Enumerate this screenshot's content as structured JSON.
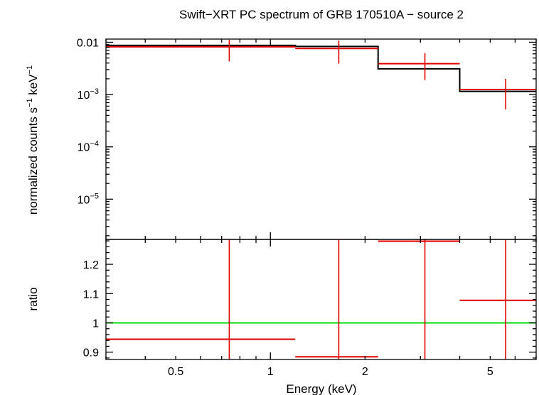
{
  "chart_data": [
    {
      "panel": "spectrum",
      "type": "line",
      "title": "Swift−XRT PC spectrum of GRB 170510A − source 2",
      "ylabel": "normalized counts s",
      "ylabel_sup1": "−1",
      "ylabel_mid": " keV",
      "ylabel_sup2": "−1",
      "xscale": "log",
      "yscale": "log",
      "xlim": [
        0.3,
        7.0
      ],
      "ylim": [
        1.7e-06,
        0.0115
      ],
      "yticks": [
        {
          "value": 0.01,
          "base": "0.01",
          "exp": ""
        },
        {
          "value": 0.001,
          "base": "10",
          "exp": "−3"
        },
        {
          "value": 0.0001,
          "base": "10",
          "exp": "−4"
        },
        {
          "value": 1e-05,
          "base": "10",
          "exp": "−5"
        }
      ],
      "series": [
        {
          "type": "data-points",
          "color": "#e00000",
          "points": [
            {
              "x": 0.74,
              "xlo": 0.3,
              "xhi": 1.2,
              "y": 0.0082,
              "ylo": 0.0043,
              "yhi": 0.0112
            },
            {
              "x": 1.65,
              "xlo": 1.2,
              "xhi": 2.2,
              "y": 0.0076,
              "ylo": 0.0039,
              "yhi": 0.0108
            },
            {
              "x": 3.1,
              "xlo": 2.2,
              "xhi": 4.0,
              "y": 0.0039,
              "ylo": 0.0019,
              "yhi": 0.0062
            },
            {
              "x": 5.6,
              "xlo": 4.0,
              "xhi": 7.0,
              "y": 0.00125,
              "ylo": 0.00052,
              "yhi": 0.002
            }
          ]
        },
        {
          "type": "model-step",
          "color": "#000000",
          "steps": [
            {
              "xlo": 0.3,
              "xhi": 1.2,
              "y": 0.0087
            },
            {
              "xlo": 1.2,
              "xhi": 2.2,
              "y": 0.0083
            },
            {
              "xlo": 2.2,
              "xhi": 4.0,
              "y": 0.0031
            },
            {
              "xlo": 4.0,
              "xhi": 7.0,
              "y": 0.00115
            }
          ]
        }
      ]
    },
    {
      "panel": "ratio",
      "type": "scatter",
      "ylabel": "ratio",
      "xlabel": "Energy (keV)",
      "xscale": "log",
      "xlim": [
        0.3,
        7.0
      ],
      "ylim": [
        0.875,
        1.285
      ],
      "yticks": [
        "0.9",
        "1",
        "1.1",
        "1.2"
      ],
      "ytick_values": [
        0.9,
        1.0,
        1.1,
        1.2
      ],
      "xticks": [
        "0.5",
        "1",
        "2",
        "5"
      ],
      "xtick_values": [
        0.5,
        1,
        2,
        5
      ],
      "reference_line": {
        "y": 1.0,
        "color": "#00dd00"
      },
      "series": [
        {
          "type": "data-points",
          "color": "#e00000",
          "points": [
            {
              "x": 0.74,
              "xlo": 0.3,
              "xhi": 1.2,
              "y": 0.944,
              "ylo": 0.875,
              "yhi": 1.285
            },
            {
              "x": 1.65,
              "xlo": 1.2,
              "xhi": 2.2,
              "y": 0.884,
              "ylo": 0.875,
              "yhi": 1.285
            },
            {
              "x": 3.1,
              "xlo": 2.2,
              "xhi": 4.0,
              "y": 1.279,
              "ylo": 0.875,
              "yhi": 1.285
            },
            {
              "x": 5.6,
              "xlo": 4.0,
              "xhi": 7.0,
              "y": 1.077,
              "ylo": 0.875,
              "yhi": 1.285
            }
          ]
        }
      ]
    }
  ]
}
